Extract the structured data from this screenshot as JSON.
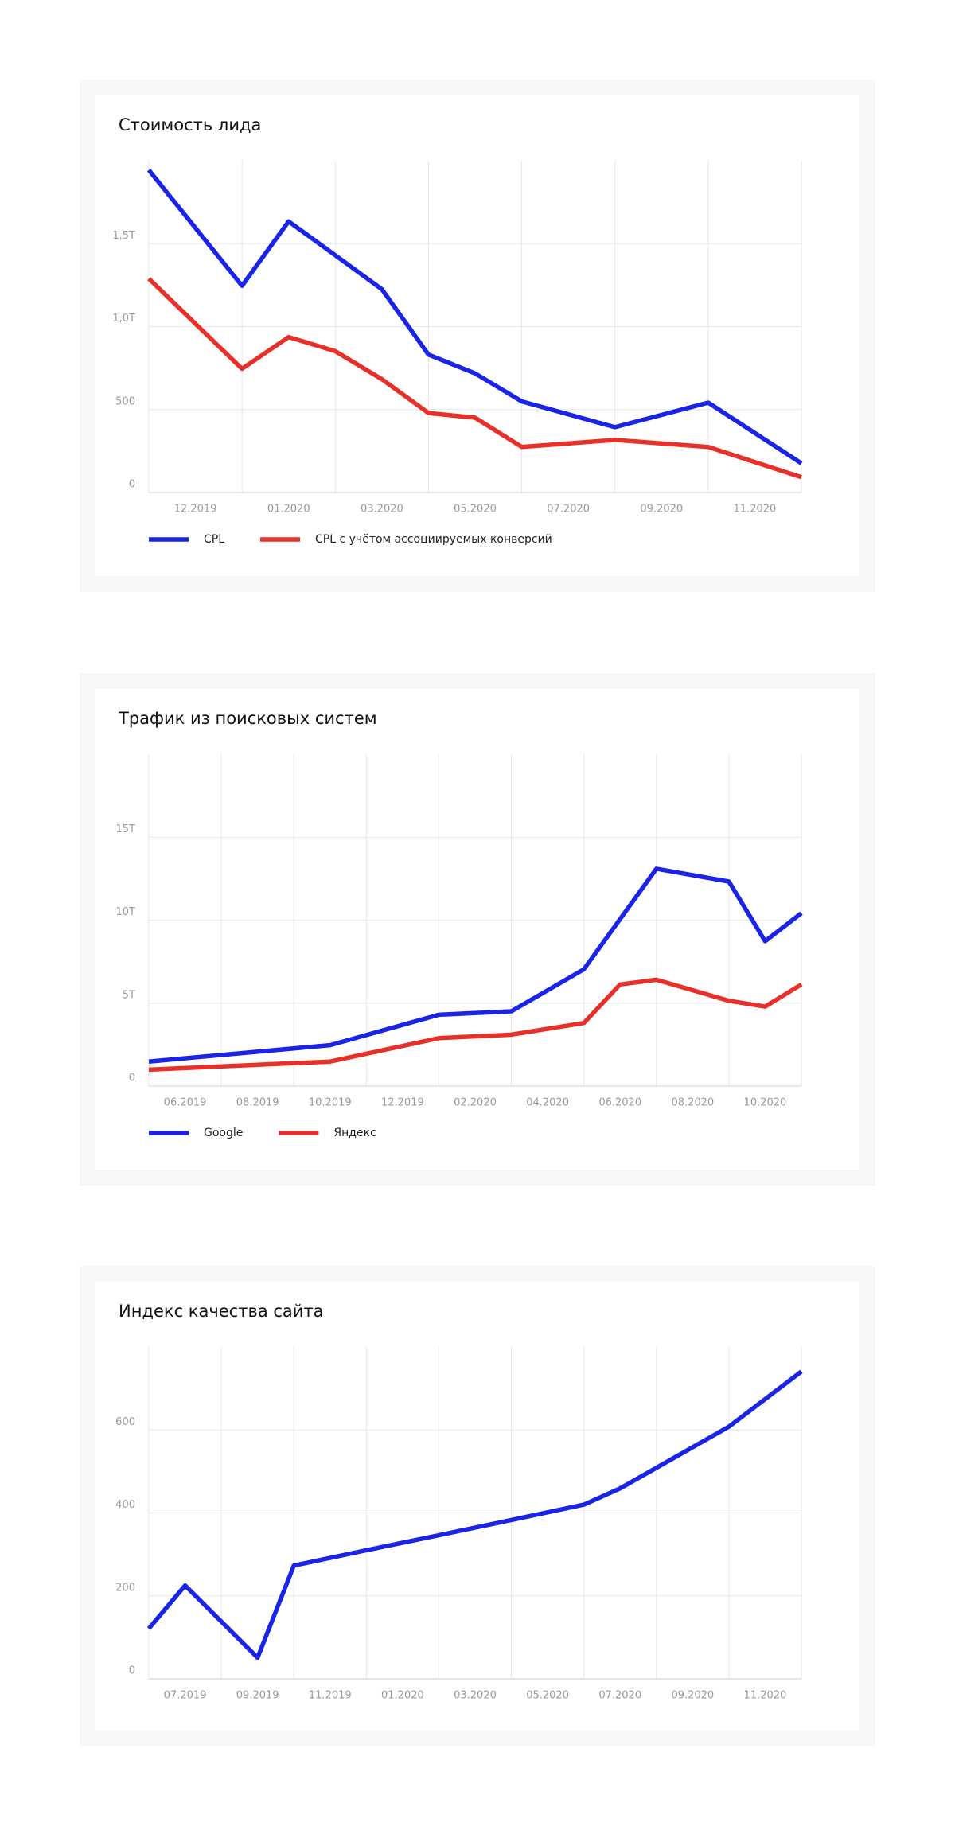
{
  "chart_data": [
    {
      "type": "line",
      "title": "Стоимость лида",
      "xlim": [
        0,
        14
      ],
      "xgrid": [
        0,
        2,
        4,
        6,
        8,
        10,
        12,
        14
      ],
      "xticks": [
        {
          "value": 1,
          "label": "12.2019"
        },
        {
          "value": 3,
          "label": "01.2020"
        },
        {
          "value": 5,
          "label": "03.2020"
        },
        {
          "value": 7,
          "label": "05.2020"
        },
        {
          "value": 9,
          "label": "07.2020"
        },
        {
          "value": 11,
          "label": "09.2020"
        },
        {
          "value": 13,
          "label": "11.2020"
        }
      ],
      "ylim": [
        0,
        2000
      ],
      "yticks": [
        0,
        500,
        {
          "value": 1000,
          "label": "1,0Т"
        },
        {
          "value": 1500,
          "label": "1,5Т"
        }
      ],
      "grid": true,
      "series": [
        {
          "name": "CPL",
          "color": "#1a24e6",
          "x": [
            0,
            2,
            3,
            4,
            5,
            6,
            7,
            8,
            10,
            12,
            14
          ],
          "values": [
            1944,
            1246,
            1634,
            1430,
            1225,
            831,
            718,
            549,
            394,
            542,
            176
          ]
        },
        {
          "name": "CPL с учётом ассоциируемых конверсий",
          "color": "#e8302a",
          "x": [
            0,
            2,
            3,
            4,
            5,
            6,
            7,
            8,
            10,
            12,
            14
          ],
          "values": [
            1289,
            746,
            937,
            852,
            683,
            479,
            451,
            275,
            317,
            275,
            92
          ]
        }
      ]
    },
    {
      "type": "line",
      "title": "Трафик из поисковых систем",
      "xlim": [
        0,
        18
      ],
      "xgrid": [
        0,
        2,
        4,
        6,
        8,
        10,
        12,
        14,
        16,
        18
      ],
      "xticks": [
        {
          "value": 1,
          "label": "06.2019"
        },
        {
          "value": 3,
          "label": "08.2019"
        },
        {
          "value": 5,
          "label": "10.2019"
        },
        {
          "value": 7,
          "label": "12.2019"
        },
        {
          "value": 9,
          "label": "02.2020"
        },
        {
          "value": 11,
          "label": "04.2020"
        },
        {
          "value": 13,
          "label": "06.2020"
        },
        {
          "value": 15,
          "label": "08.2020"
        },
        {
          "value": 17,
          "label": "10.2020"
        }
      ],
      "ylim": [
        0,
        20000
      ],
      "yticks": [
        0,
        {
          "value": 5000,
          "label": "5Т"
        },
        {
          "value": 10000,
          "label": "10Т"
        },
        {
          "value": 15000,
          "label": "15Т"
        }
      ],
      "grid": true,
      "series": [
        {
          "name": "Google",
          "color": "#1a24e6",
          "x": [
            0,
            5,
            8,
            10,
            12,
            14,
            16,
            17,
            18
          ],
          "values": [
            1479,
            2465,
            4296,
            4507,
            7042,
            13099,
            12324,
            8732,
            10423
          ]
        },
        {
          "name": "Яндекс",
          "color": "#e8302a",
          "x": [
            0,
            5,
            8,
            10,
            12,
            13,
            14,
            16,
            17,
            18
          ],
          "values": [
            986,
            1479,
            2887,
            3099,
            3803,
            6127,
            6408,
            5141,
            4789,
            6127
          ]
        }
      ]
    },
    {
      "type": "line",
      "title": "Индекс качества сайта",
      "xlim": [
        0,
        18
      ],
      "xgrid": [
        0,
        2,
        4,
        6,
        8,
        10,
        12,
        14,
        16,
        18
      ],
      "xticks": [
        {
          "value": 1,
          "label": "07.2019"
        },
        {
          "value": 3,
          "label": "09.2019"
        },
        {
          "value": 5,
          "label": "11.2019"
        },
        {
          "value": 7,
          "label": "01.2020"
        },
        {
          "value": 9,
          "label": "03.2020"
        },
        {
          "value": 11,
          "label": "05.2020"
        },
        {
          "value": 13,
          "label": "07.2020"
        },
        {
          "value": 15,
          "label": "09.2020"
        },
        {
          "value": 17,
          "label": "11.2020"
        }
      ],
      "ylim": [
        0,
        800
      ],
      "yticks": [
        0,
        200,
        400,
        600
      ],
      "grid": true,
      "series": [
        {
          "color": "#1a24e6",
          "x": [
            0,
            1,
            3,
            4,
            6,
            8,
            10,
            12,
            13,
            16,
            18
          ],
          "values": [
            121,
            225,
            51,
            273,
            310,
            346,
            383,
            420,
            459,
            608,
            741
          ]
        }
      ]
    }
  ]
}
